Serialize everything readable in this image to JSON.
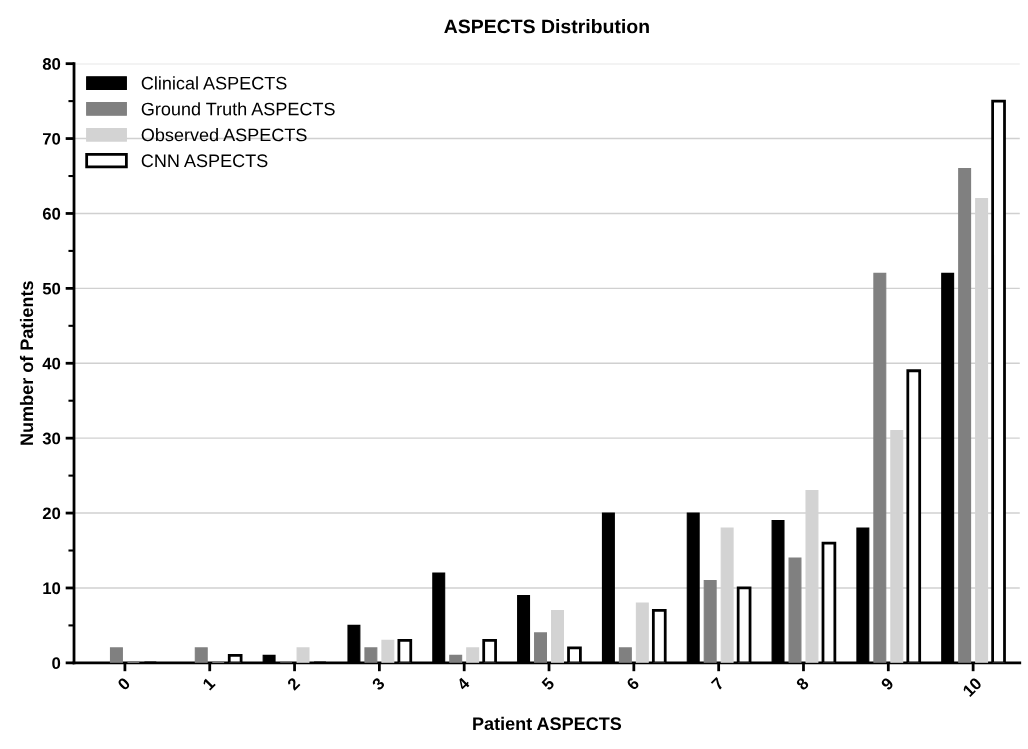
{
  "chart_data": {
    "type": "bar",
    "title": "ASPECTS Distribution",
    "xlabel": "Patient ASPECTS",
    "ylabel": "Number of Patients",
    "categories": [
      "0",
      "1",
      "2",
      "3",
      "4",
      "5",
      "6",
      "7",
      "8",
      "9",
      "10"
    ],
    "series": [
      {
        "name": "Clinical ASPECTS",
        "color": "#000000",
        "values": [
          0,
          0,
          1,
          5,
          12,
          9,
          20,
          20,
          19,
          18,
          52
        ]
      },
      {
        "name": "Ground Truth ASPECTS",
        "color": "#808080",
        "values": [
          2,
          2,
          0,
          2,
          1,
          4,
          2,
          11,
          14,
          52,
          66
        ]
      },
      {
        "name": "Observed ASPECTS",
        "color": "#d3d3d3",
        "values": [
          0,
          0,
          2,
          3,
          2,
          7,
          8,
          18,
          23,
          31,
          62
        ]
      },
      {
        "name": "CNN ASPECTS",
        "color": "#ffffff",
        "values": [
          0,
          1,
          0,
          3,
          3,
          2,
          7,
          10,
          16,
          39,
          75
        ]
      }
    ],
    "ylim": [
      0,
      80
    ],
    "yticks": [
      0,
      10,
      20,
      30,
      40,
      50,
      60,
      70,
      80
    ],
    "grid": "y",
    "legend": "top left"
  }
}
